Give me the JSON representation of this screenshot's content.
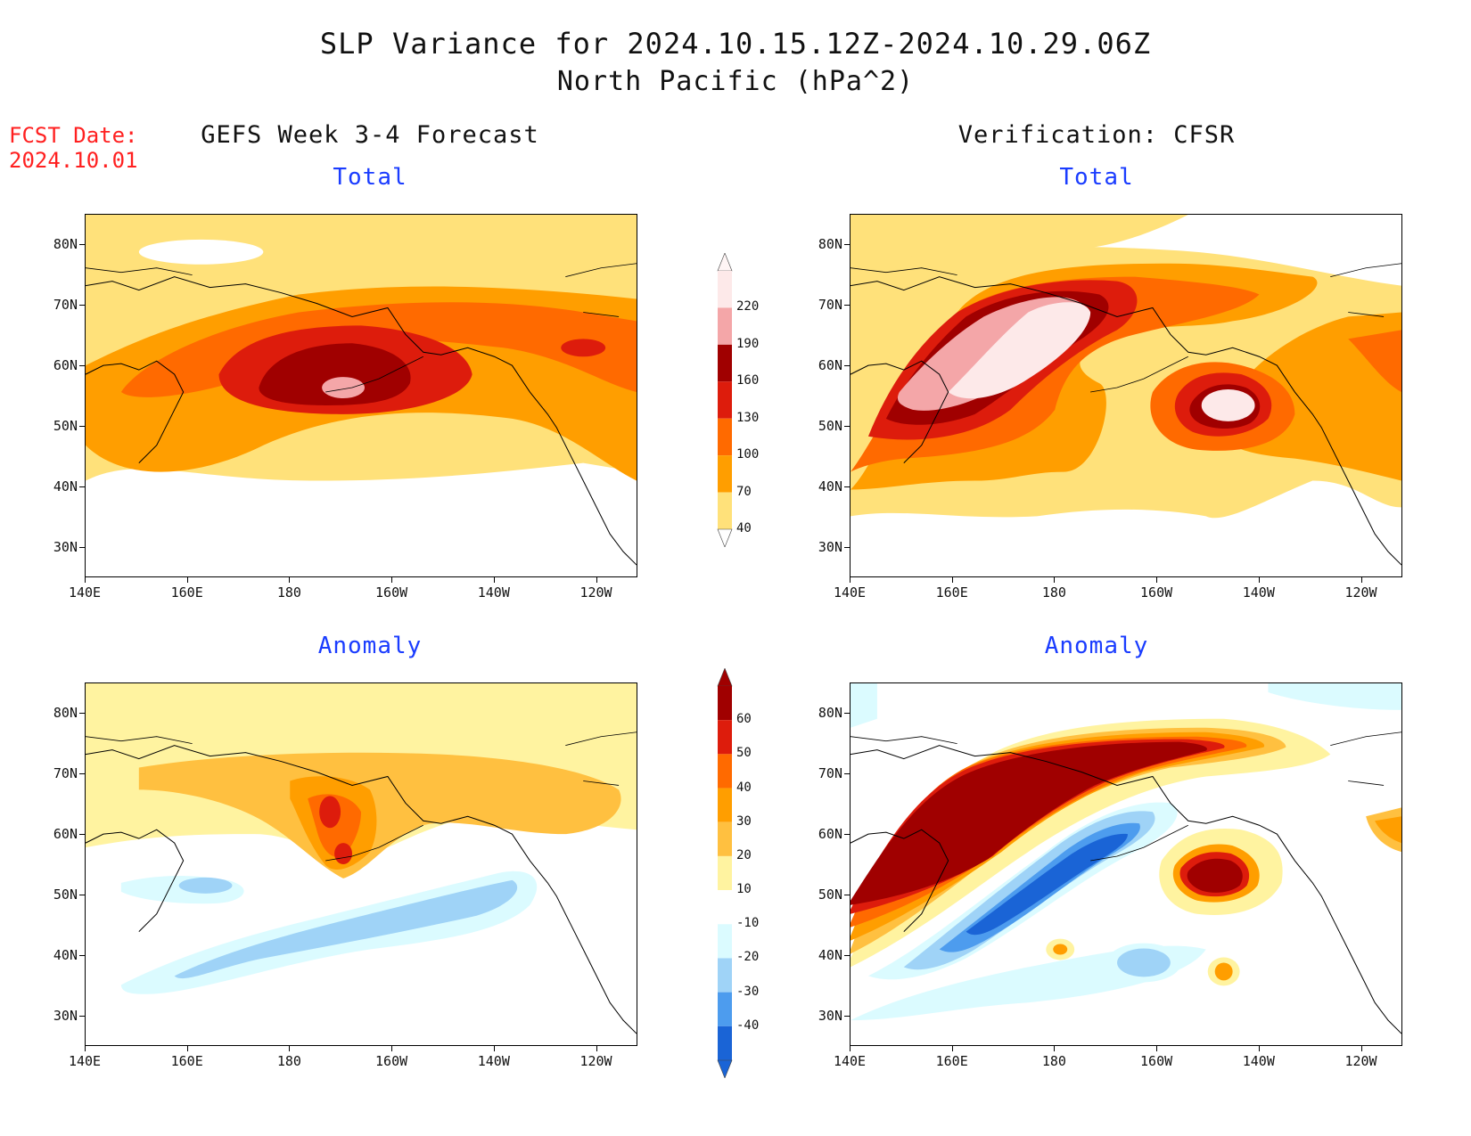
{
  "header": {
    "title_line1": "SLP Variance for 2024.10.15.12Z-2024.10.29.06Z",
    "title_line2": "North Pacific (hPa^2)",
    "fcst_line1": "FCST Date:",
    "fcst_line2": "2024.10.01"
  },
  "columns": {
    "left": "GEFS Week 3-4 Forecast",
    "right": "Verification: CFSR"
  },
  "panels": {
    "top_left": "Total",
    "top_right": "Total",
    "bottom_left": "Anomaly",
    "bottom_right": "Anomaly"
  },
  "axes": {
    "lat_labels": [
      "80N",
      "70N",
      "60N",
      "50N",
      "40N",
      "30N"
    ],
    "lon_labels": [
      "140E",
      "160E",
      "180",
      "160W",
      "140W",
      "120W"
    ]
  },
  "colorbar_total": {
    "labels": [
      "220",
      "190",
      "160",
      "130",
      "100",
      "70",
      "40"
    ],
    "colors": [
      "#fde9e9",
      "#f4a6a8",
      "#a00000",
      "#dd1c0c",
      "#ff6a00",
      "#ff9e00",
      "#ffe17a"
    ]
  },
  "colorbar_anomaly": {
    "labels": [
      "60",
      "50",
      "40",
      "30",
      "20",
      "10",
      "-10",
      "-20",
      "-30",
      "-40"
    ],
    "colors": [
      "#a00000",
      "#dd1c0c",
      "#ff6a00",
      "#ff9e00",
      "#ffc040",
      "#fff3a0",
      "#ffffff",
      "#dbfbff",
      "#9fd3f7",
      "#4d9cee",
      "#1a64d6"
    ]
  }
}
